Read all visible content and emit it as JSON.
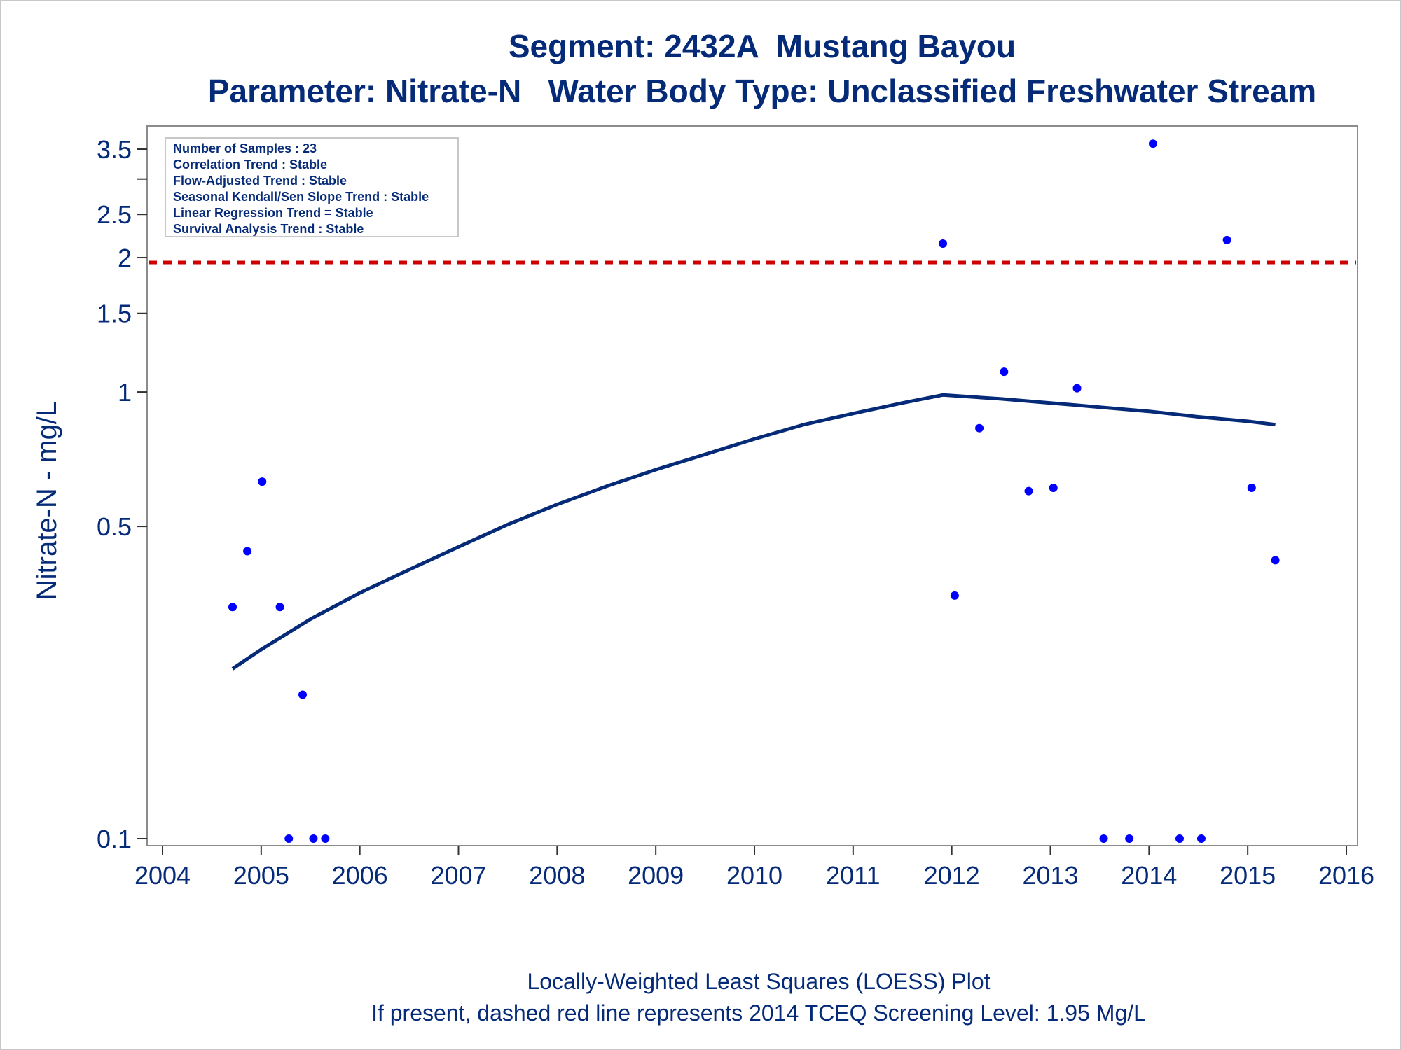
{
  "chart_data": {
    "type": "scatter",
    "title": "Segment: 2432A  Mustang Bayou",
    "subtitle": "Parameter: Nitrate-N   Water Body Type: Unclassified Freshwater Stream",
    "xlabel": "",
    "ylabel": "Nitrate-N - mg/L",
    "y_scale": "log",
    "xlim": [
      2004,
      2016
    ],
    "ylim": [
      0.1,
      4.0
    ],
    "x_ticks": [
      "2004",
      "2005",
      "2006",
      "2007",
      "2008",
      "2009",
      "2010",
      "2011",
      "2012",
      "2013",
      "2014",
      "2015",
      "2016"
    ],
    "y_ticks": [
      "0.1",
      "0.5",
      "1",
      "1.5",
      "2",
      "2.5",
      "3.5"
    ],
    "y_minor_ticks": [
      3
    ],
    "grid": false,
    "legend": "none",
    "inset_text": [
      "Number of Samples : 23",
      "Correlation Trend : Stable",
      "Flow-Adjusted Trend : Stable",
      "Seasonal Kendall/Sen Slope Trend : Stable",
      "Linear Regression Trend = Stable",
      "Survival Analysis Trend : Stable"
    ],
    "inset_placement": "top-left",
    "footnotes": [
      "Locally-Weighted Least Squares (LOESS) Plot",
      "If present, dashed red line represents 2014 TCEQ Screening Level: 1.95 Mg/L"
    ],
    "screening_level": 1.95,
    "series": [
      {
        "type": "scatter",
        "color": "#0000ff",
        "points": [
          [
            2004.71,
            0.33
          ],
          [
            2004.86,
            0.44
          ],
          [
            2005.01,
            0.63
          ],
          [
            2005.19,
            0.33
          ],
          [
            2005.28,
            0.1
          ],
          [
            2005.42,
            0.21
          ],
          [
            2005.53,
            0.1
          ],
          [
            2005.65,
            0.1
          ],
          [
            2011.91,
            2.15
          ],
          [
            2012.03,
            0.35
          ],
          [
            2012.28,
            0.83
          ],
          [
            2012.53,
            1.11
          ],
          [
            2012.78,
            0.6
          ],
          [
            2013.03,
            0.61
          ],
          [
            2013.27,
            1.02
          ],
          [
            2013.54,
            0.1
          ],
          [
            2013.8,
            0.1
          ],
          [
            2014.04,
            3.6
          ],
          [
            2014.31,
            0.1
          ],
          [
            2014.53,
            0.1
          ],
          [
            2014.79,
            2.19
          ],
          [
            2015.04,
            0.61
          ],
          [
            2015.28,
            0.42
          ]
        ]
      },
      {
        "type": "line",
        "color": "#052a78",
        "points": [
          [
            2004.71,
            0.24
          ],
          [
            2005.0,
            0.265
          ],
          [
            2005.5,
            0.31
          ],
          [
            2006.0,
            0.355
          ],
          [
            2006.5,
            0.4
          ],
          [
            2007.0,
            0.45
          ],
          [
            2007.5,
            0.505
          ],
          [
            2008.0,
            0.56
          ],
          [
            2008.5,
            0.615
          ],
          [
            2009.0,
            0.67
          ],
          [
            2009.5,
            0.725
          ],
          [
            2010.0,
            0.785
          ],
          [
            2010.5,
            0.845
          ],
          [
            2011.0,
            0.895
          ],
          [
            2011.5,
            0.945
          ],
          [
            2011.91,
            0.985
          ],
          [
            2012.5,
            0.965
          ],
          [
            2013.0,
            0.945
          ],
          [
            2013.5,
            0.925
          ],
          [
            2014.0,
            0.905
          ],
          [
            2014.5,
            0.88
          ],
          [
            2015.0,
            0.86
          ],
          [
            2015.28,
            0.845
          ]
        ]
      },
      {
        "type": "reference-line",
        "style": "dashed",
        "color": "#cc0000",
        "y": 1.95
      }
    ]
  }
}
